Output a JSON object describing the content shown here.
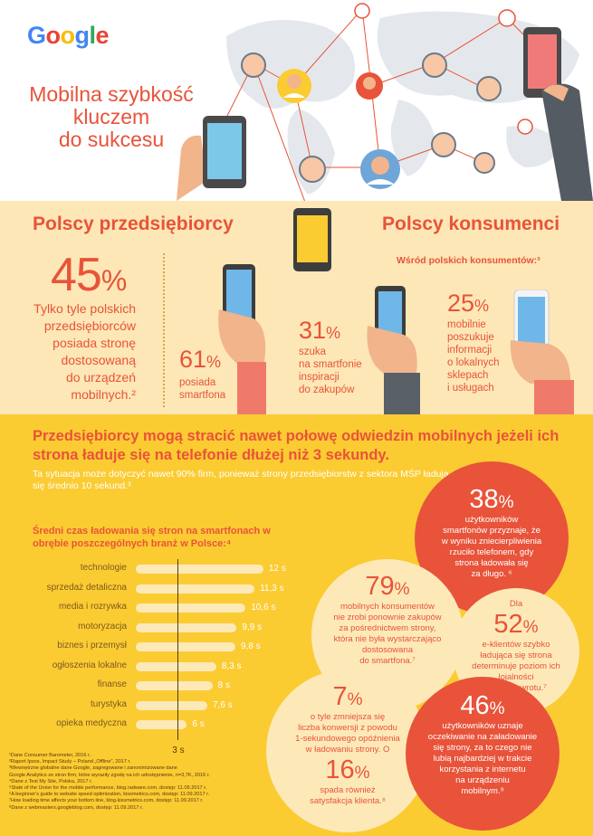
{
  "logo": {
    "letters": [
      "G",
      "o",
      "o",
      "g",
      "l",
      "e"
    ],
    "colors": [
      "#4285f4",
      "#ea4335",
      "#fbbc05",
      "#4285f4",
      "#34a853",
      "#ea4335"
    ]
  },
  "headline": [
    "Mobilna szybkość",
    "kluczem",
    "do sukcesu"
  ],
  "map_icons": [
    "person-avatar-icon",
    "smartphone-icon",
    "hand-holding-phone-icon",
    "world-map-icon"
  ],
  "businesses": {
    "title": "Polscy przedsiębiorcy",
    "stat": {
      "value": "45",
      "unit": "%",
      "lines": [
        "Tylko tyle polskich",
        "przedsiębiorców",
        "posiada stronę",
        "dostosowaną",
        "do urządzeń",
        "mobilnych.²"
      ]
    }
  },
  "consumers": {
    "title": "Polscy konsumenci",
    "subtitle": "Wśród polskich konsumentów:³",
    "stats": [
      {
        "value": "61",
        "unit": "%",
        "lines": [
          "posiada",
          "smartfona"
        ]
      },
      {
        "value": "31",
        "unit": "%",
        "lines": [
          "szuka",
          "na smartfonie",
          "inspiracji",
          "do zakupów"
        ]
      },
      {
        "value": "25",
        "unit": "%",
        "lines": [
          "mobilnie",
          "poszukuje",
          "informacji",
          "o lokalnych",
          "sklepach",
          "i usługach"
        ]
      }
    ]
  },
  "speed": {
    "headline": "Przedsiębiorcy mogą stracić nawet połowę odwiedzin mobilnych jeżeli ich strona ładuje się na telefonie dłużej niż 3 sekundy.",
    "sub": "Ta sytuacja może dotyczyć nawet 90% firm, ponieważ strony przedsiębiorstw z sektora MŚP ładują się średnio 10 sekund.³",
    "chart_title": "Średni czas ładowania się stron na smartfonach w obrębie poszczególnych branż w Polsce:⁴"
  },
  "chart_data": {
    "type": "bar",
    "orientation": "horizontal",
    "title": "Średni czas ładowania się stron na smartfonach w obrębie poszczególnych branż w Polsce:⁴",
    "categories": [
      "technologie",
      "sprzedaż detaliczna",
      "media i rozrywka",
      "motoryzacja",
      "biznes i przemysł",
      "ogłoszenia lokalne",
      "finanse",
      "turystyka",
      "opieka medyczna"
    ],
    "values": [
      12,
      11.3,
      10.6,
      9.9,
      9.8,
      8.3,
      8,
      7.6,
      6
    ],
    "value_labels": [
      "12 s",
      "11,3 s",
      "10,6 s",
      "9,9 s",
      "9,8 s",
      "8,3 s",
      "8 s",
      "7,6 s",
      "6 s"
    ],
    "reference_line": {
      "value": 3,
      "label": "3 s"
    },
    "xlim": [
      0,
      12.5
    ],
    "bar_color": "#fde9b8",
    "grid": false
  },
  "bubbles": [
    {
      "id": "b38",
      "style": "red",
      "pre": "",
      "value": "38",
      "unit": "%",
      "lines": [
        "użytkowników",
        "smartfonów przyznaje, że",
        "w wyniku zniecierpliwienia",
        "rzuciło telefonem, gdy",
        "strona ładowała się",
        "za długo. ⁶"
      ]
    },
    {
      "id": "b79",
      "style": "cream",
      "pre": "",
      "value": "79",
      "unit": "%",
      "lines": [
        "mobilnych konsumentów",
        "nie zrobi ponownie zakupów",
        "za pośrednictwem strony,",
        "która nie była wystarczająco",
        "dostosowana",
        "do smartfona.⁷"
      ]
    },
    {
      "id": "b52",
      "style": "cream",
      "pre": "Dla",
      "value": "52",
      "unit": "%",
      "lines": [
        "e-klientów szybko",
        "ładująca się strona",
        "determinuje poziom ich",
        "lojalności",
        "i chęć powrotu.⁷"
      ]
    },
    {
      "id": "b7",
      "style": "cream",
      "pre": "",
      "value": "7",
      "unit": "%",
      "lines": [
        "o tyle zmniejsza się",
        "liczba konwersji z powodu",
        "1-sekundowego opóźnienia",
        "w ładowaniu strony. O"
      ],
      "value2": "16",
      "unit2": "%",
      "lines2": [
        "spada również",
        "satysfakcja klienta.⁸"
      ]
    },
    {
      "id": "b46",
      "style": "red",
      "pre": "",
      "value": "46",
      "unit": "%",
      "lines": [
        "użytkowników uznaje",
        "oczekiwanie na załadowanie",
        "się strony, za to czego nie",
        "lubią najbardziej w trakcie",
        "korzystania z internetu",
        "na urządzeniu",
        "mobilnym.⁹"
      ]
    }
  ],
  "footnotes": [
    "¹Dane Consumer Barometer, 2016 r.",
    "²Raport Ipsos, Impact Study – Poland „Offline\", 2017 r.",
    "³Wewnętrzne globalne dane Google, zagregowane i zanonimizowane dane",
    "Google Analytics ze stron firm, które wyraziły zgodę na ich udostępnienie, n=3,7K, 2016 r.",
    "⁴Dane z Test My Site, Polska, 2017 r.",
    "⁵State of the Union for the mobile performance, blog.radware.com, dostęp: 11.09.2017 r.",
    "⁶A beginner's guide to website speed optimization, kissmetrics.com, dostęp: 11.09.2017 r.",
    "⁷How loading time affects your bottom line, blog.kissmetrics.com, dostęp: 11.09.2017 r.",
    "⁸Dane z webmasters.googleblog.com, dostęp: 11.09.2017 r."
  ]
}
